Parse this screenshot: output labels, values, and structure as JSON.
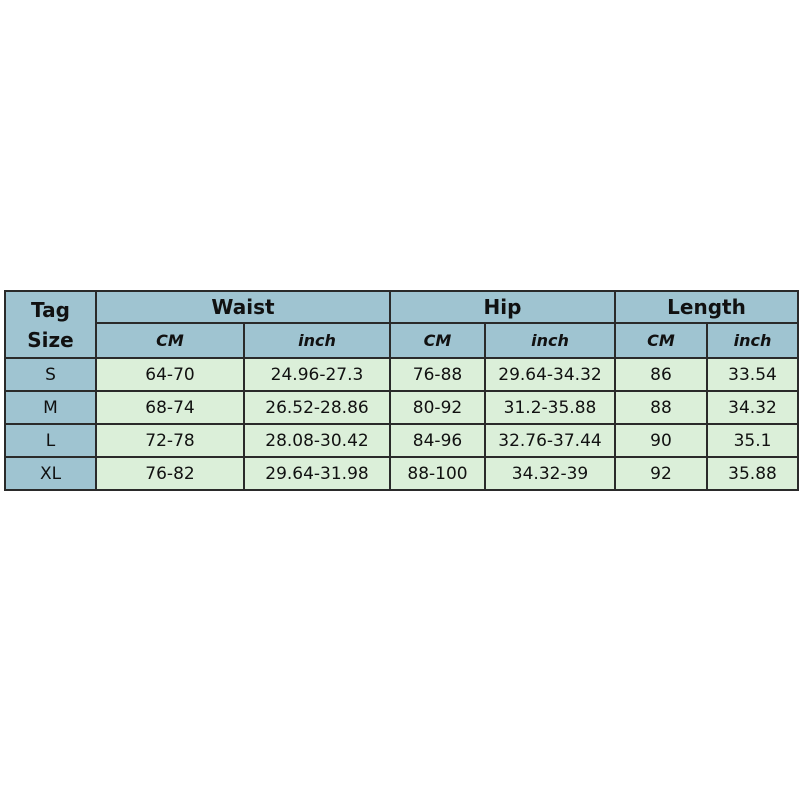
{
  "table": {
    "tag_header": "Tag Size",
    "groups": [
      "Waist",
      "Hip",
      "Length"
    ],
    "units": [
      "CM",
      "inch",
      "CM",
      "inch",
      "CM",
      "inch"
    ],
    "rows": [
      [
        "S",
        "64-70",
        "24.96-27.3",
        "76-88",
        "29.64-34.32",
        "86",
        "33.54"
      ],
      [
        "M",
        "68-74",
        "26.52-28.86",
        "80-92",
        "31.2-35.88",
        "88",
        "34.32"
      ],
      [
        "L",
        "72-78",
        "28.08-30.42",
        "84-96",
        "32.76-37.44",
        "90",
        "35.1"
      ],
      [
        "XL",
        "76-82",
        "29.64-31.98",
        "88-100",
        "34.32-39",
        "92",
        "35.88"
      ]
    ]
  }
}
